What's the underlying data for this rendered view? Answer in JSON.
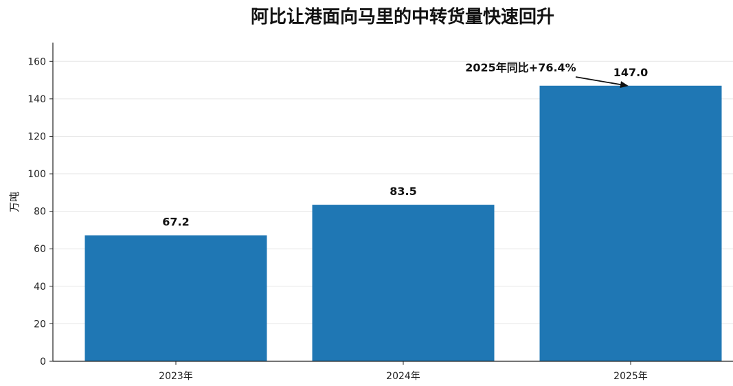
{
  "chart_data": {
    "type": "bar",
    "title": "阿比让港面向马里的中转货量快速回升",
    "xlabel": "",
    "ylabel": "万吨",
    "categories": [
      "2023年",
      "2024年",
      "2025年"
    ],
    "values": [
      67.2,
      83.5,
      147.0
    ],
    "value_labels": [
      "67.2",
      "83.5",
      "147.0"
    ],
    "ylim": [
      0,
      170
    ],
    "yticks": [
      0,
      20,
      40,
      60,
      80,
      100,
      120,
      140,
      160
    ],
    "grid": "horizontal",
    "bar_color": "#1f77b4",
    "annotations": [
      {
        "text": "2025年同比+76.4%",
        "target_category": "2025年",
        "target_value": 147.0
      }
    ]
  }
}
